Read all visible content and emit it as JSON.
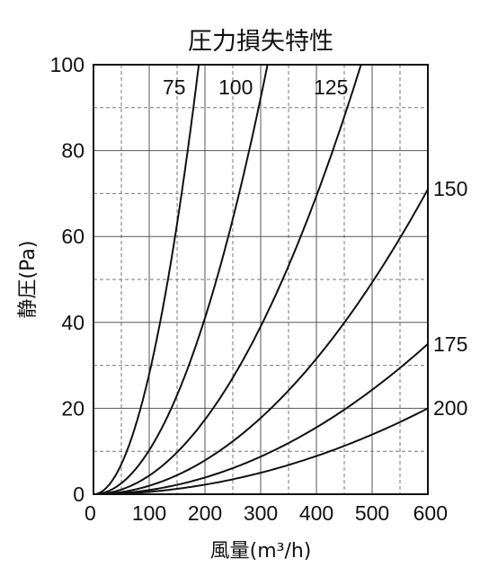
{
  "chart_data": {
    "type": "line",
    "title": "圧力損失特性",
    "xlabel": "風量(m³/h)",
    "ylabel": "静圧(Pa)",
    "xlim": [
      0,
      600
    ],
    "ylim": [
      0,
      100
    ],
    "x_ticks": [
      "0",
      "100",
      "200",
      "300",
      "400",
      "500",
      "600"
    ],
    "y_ticks": [
      "0",
      "20",
      "40",
      "60",
      "80",
      "100"
    ],
    "grid": true,
    "series": [
      {
        "name": "75",
        "x": [
          0,
          50,
          100,
          150,
          180,
          200
        ],
        "y": [
          0,
          5.0,
          27,
          62,
          90,
          112
        ]
      },
      {
        "name": "100",
        "x": [
          0,
          50,
          100,
          150,
          200,
          250,
          300,
          320
        ],
        "y": [
          0,
          2.2,
          9.8,
          23,
          42,
          66,
          93,
          105
        ]
      },
      {
        "name": "125",
        "x": [
          0,
          100,
          200,
          300,
          400,
          450,
          480
        ],
        "y": [
          0,
          4.6,
          18,
          40,
          70,
          88,
          100
        ]
      },
      {
        "name": "150",
        "x": [
          0,
          100,
          200,
          300,
          400,
          500,
          600
        ],
        "y": [
          0,
          2.0,
          8.0,
          18,
          32,
          50,
          71
        ]
      },
      {
        "name": "175",
        "x": [
          0,
          100,
          200,
          300,
          400,
          500,
          600
        ],
        "y": [
          0,
          1.0,
          4.0,
          9.0,
          16,
          25,
          35
        ]
      },
      {
        "name": "200",
        "x": [
          0,
          100,
          200,
          300,
          400,
          500,
          600
        ],
        "y": [
          0,
          0.55,
          2.2,
          5.0,
          9.0,
          14,
          20
        ]
      }
    ]
  }
}
